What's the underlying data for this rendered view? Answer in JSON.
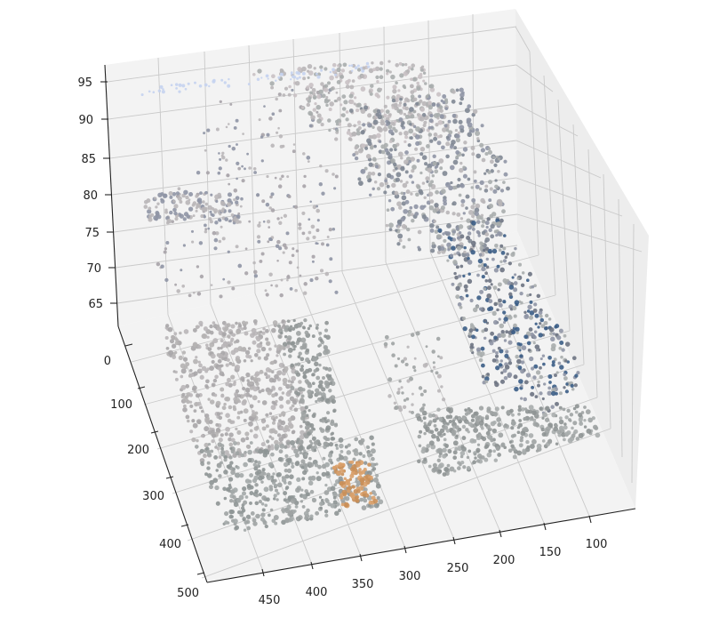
{
  "chart_data": {
    "type": "scatter",
    "projection": "3d",
    "title": "",
    "xlabel": "",
    "ylabel": "",
    "zlabel": "",
    "grid": true,
    "x_ticks": [
      "100",
      "150",
      "200",
      "250",
      "300",
      "350",
      "400",
      "450"
    ],
    "y_ticks": [
      "0",
      "100",
      "200",
      "300",
      "400",
      "500"
    ],
    "z_ticks": [
      "65",
      "70",
      "75",
      "80",
      "85",
      "90",
      "95"
    ],
    "xlim": [
      75,
      475
    ],
    "ylim": [
      -30,
      510
    ],
    "zlim": [
      62,
      97
    ],
    "colors": {
      "floor_gray": "#9ea3a3",
      "light_gray": "#b9b6b8",
      "blue_gray": "#8f95a5",
      "wall_gray": "#a9adad",
      "orange_box": "#d9a06a",
      "light_blue": "#c5d3ef",
      "dark_blue": "#3b5d86"
    }
  }
}
